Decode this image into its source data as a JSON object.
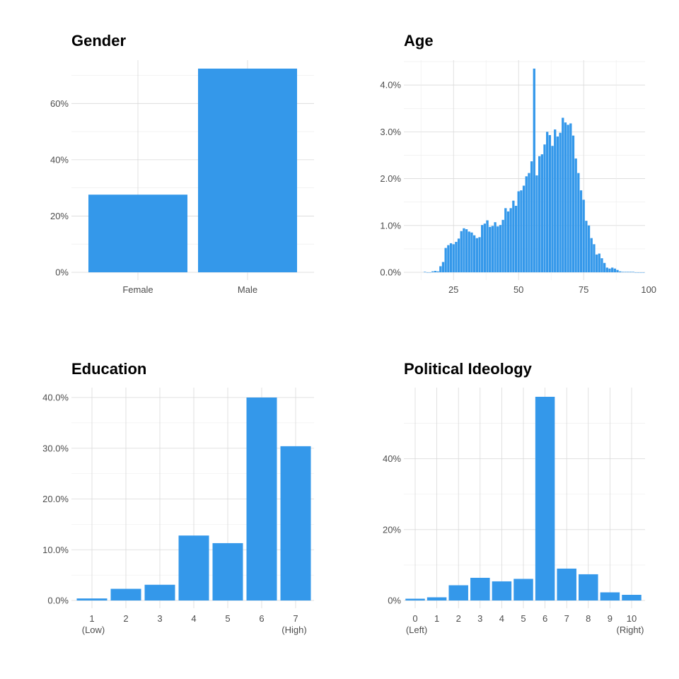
{
  "chart_data": [
    {
      "type": "bar",
      "title": "Gender",
      "xlabel": "",
      "ylabel": "",
      "categories": [
        "Female",
        "Male"
      ],
      "values": [
        27.6,
        72.4
      ],
      "ylim": [
        0,
        72.4
      ],
      "yticks": [
        0,
        20,
        40,
        60
      ],
      "ytick_labels": [
        "0%",
        "20%",
        "40%",
        "60%"
      ],
      "grid": true
    },
    {
      "type": "bar",
      "title": "Age",
      "xlabel": "",
      "ylabel": "",
      "x": [
        14,
        15,
        16,
        17,
        18,
        19,
        20,
        21,
        22,
        23,
        24,
        25,
        26,
        27,
        28,
        29,
        30,
        31,
        32,
        33,
        34,
        35,
        36,
        37,
        38,
        39,
        40,
        41,
        42,
        43,
        44,
        45,
        46,
        47,
        48,
        49,
        50,
        51,
        52,
        53,
        54,
        55,
        56,
        57,
        58,
        59,
        60,
        61,
        62,
        63,
        64,
        65,
        66,
        67,
        68,
        69,
        70,
        71,
        72,
        73,
        74,
        75,
        76,
        77,
        78,
        79,
        80,
        81,
        82,
        83,
        84,
        85,
        86,
        87,
        88,
        89,
        90,
        91,
        92,
        93,
        94,
        95,
        96,
        97,
        98
      ],
      "values": [
        0.01,
        0.0,
        0.0,
        0.02,
        0.03,
        0.02,
        0.13,
        0.22,
        0.52,
        0.58,
        0.62,
        0.6,
        0.65,
        0.72,
        0.88,
        0.94,
        0.92,
        0.87,
        0.85,
        0.79,
        0.73,
        0.75,
        1.01,
        1.04,
        1.11,
        0.97,
        0.99,
        1.07,
        0.98,
        1.01,
        1.12,
        1.37,
        1.3,
        1.37,
        1.53,
        1.42,
        1.73,
        1.75,
        1.85,
        2.05,
        2.12,
        2.37,
        4.35,
        2.07,
        2.48,
        2.52,
        2.73,
        3.0,
        2.93,
        2.7,
        3.05,
        2.9,
        2.98,
        3.3,
        3.2,
        3.15,
        3.18,
        2.92,
        2.43,
        2.12,
        1.75,
        1.55,
        1.1,
        1.0,
        0.73,
        0.6,
        0.38,
        0.4,
        0.3,
        0.2,
        0.1,
        0.08,
        0.1,
        0.08,
        0.05,
        0.02,
        0.01,
        0.01,
        0.01,
        0.01,
        0.01,
        0.0,
        0.0,
        0.0,
        0.0
      ],
      "xlim": [
        10,
        100
      ],
      "xticks": [
        25,
        50,
        75,
        100
      ],
      "ylim": [
        0,
        4.35
      ],
      "yticks": [
        0,
        1,
        2,
        3,
        4
      ],
      "ytick_labels": [
        "0.0%",
        "1.0%",
        "2.0%",
        "3.0%",
        "4.0%"
      ],
      "grid": true
    },
    {
      "type": "bar",
      "title": "Education",
      "xlabel": "",
      "ylabel": "",
      "categories": [
        "1\n(Low)",
        "2",
        "3",
        "4",
        "5",
        "6",
        "7\n(High)"
      ],
      "values": [
        0.4,
        2.3,
        3.1,
        12.8,
        11.3,
        40.0,
        30.4
      ],
      "ylim": [
        0,
        40.0
      ],
      "yticks": [
        0,
        10,
        20,
        30,
        40
      ],
      "ytick_labels": [
        "0.0%",
        "10.0%",
        "20.0%",
        "30.0%",
        "40.0%"
      ],
      "grid": true
    },
    {
      "type": "bar",
      "title": "Political Ideology",
      "xlabel": "",
      "ylabel": "",
      "categories": [
        "0\n(Left)",
        "1",
        "2",
        "3",
        "4",
        "5",
        "6",
        "7",
        "8",
        "9",
        "10\n(Right)"
      ],
      "values": [
        0.5,
        0.9,
        4.3,
        6.4,
        5.4,
        6.1,
        57.5,
        9.0,
        7.4,
        2.3,
        1.6
      ],
      "ylim": [
        0,
        57.5
      ],
      "yticks": [
        0,
        20,
        40
      ],
      "ytick_labels": [
        "0%",
        "20%",
        "40%"
      ],
      "grid": true
    }
  ],
  "colors": {
    "bar": "#3498ea",
    "grid_major": "#d9d9d9",
    "grid_minor": "#ececec"
  }
}
